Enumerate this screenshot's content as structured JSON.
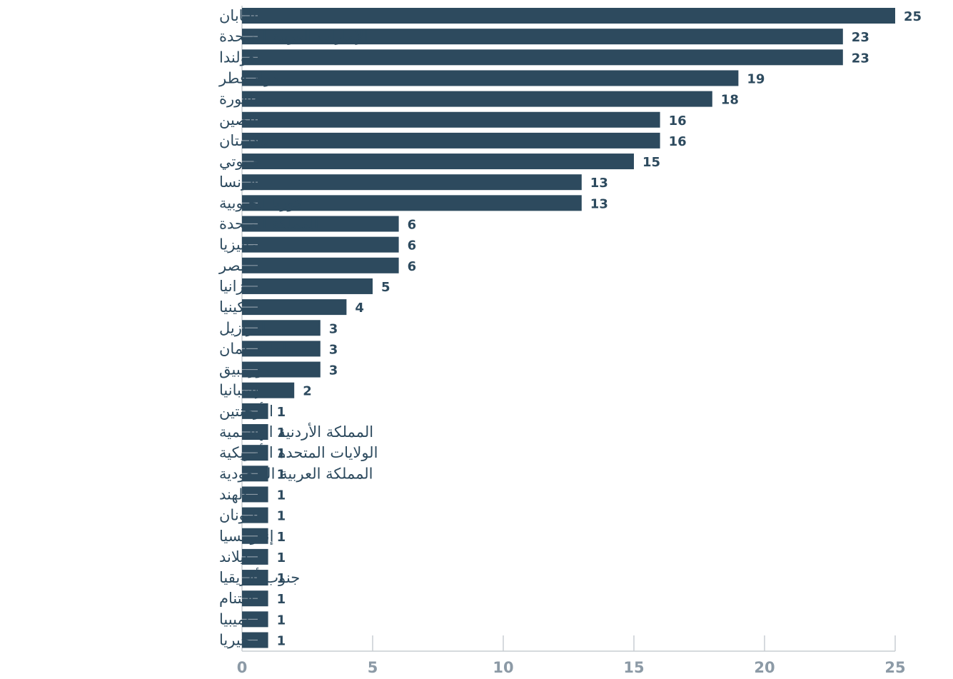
{
  "chart_data": {
    "type": "bar",
    "orientation": "horizontal",
    "title": "",
    "xlabel": "",
    "ylabel": "",
    "categories": [
      "اليابان",
      "الإمارات العربية المتحدة",
      "هولندا",
      "دولة قطر",
      "سنغافورة",
      "الصين",
      "باكستان",
      "جيبوتي",
      "فرنسا",
      "كوريا الجنوبية",
      "المملكة المتحدة",
      "ماليزيا",
      "مصر",
      "تنزانيا",
      "كينيا",
      "البرازيل",
      "سلطنة عمان",
      "موزمبيق",
      "إسبانيا",
      "الأرجنتين",
      "المملكة الأردنية الهاشمية",
      "الولايات المتحدة الأمريكية",
      "المملكة العربية السعودية",
      "الهند",
      "اليونان",
      "إندونيسيا",
      "تايلاند",
      "جنوب أفريقيا",
      "فيتنام",
      "ناميبيا",
      "نيجيريا"
    ],
    "values": [
      25,
      23,
      23,
      19,
      18,
      16,
      16,
      15,
      13,
      13,
      6,
      6,
      6,
      5,
      4,
      3,
      3,
      3,
      2,
      1,
      1,
      1,
      1,
      1,
      1,
      1,
      1,
      1,
      1,
      1,
      1
    ],
    "xlim": [
      0,
      25
    ],
    "x_ticks": [
      0,
      5,
      10,
      15,
      20,
      25
    ],
    "grid": true,
    "legend": "none",
    "bar_color": "#2d4a5e",
    "label_color": "#2d4a5e",
    "tick_color": "#8c9aa6",
    "grid_color": "#c8cdd2"
  }
}
